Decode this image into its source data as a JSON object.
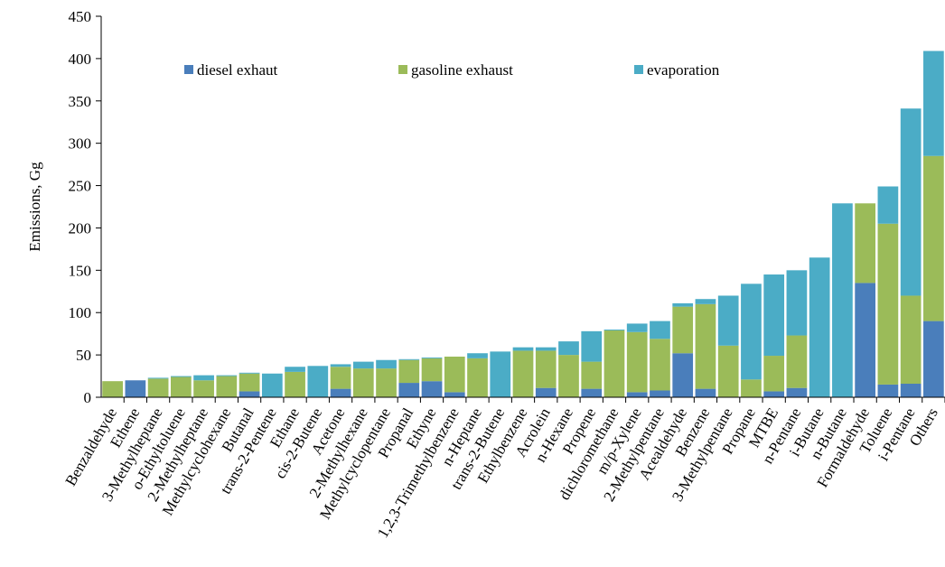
{
  "chart_data": {
    "type": "bar",
    "stacked": true,
    "ylabel": "Emissions,  Gg",
    "xlabel": "",
    "title": "",
    "ylim": [
      0,
      450
    ],
    "yticks": [
      0,
      50,
      100,
      150,
      200,
      250,
      300,
      350,
      400,
      450
    ],
    "legend_position": "top-left",
    "categories": [
      "Benzaldehyde",
      "Ethene",
      "3-Methylheptane",
      "o-Ethyltoluene",
      "2-Methylheptane",
      "Methylcyclohexane",
      "Butanal",
      "trans-2-Pentene",
      "Ethane",
      "cis-2-Butene",
      "Acetone",
      "2-Methylhexane",
      "Methylcyclopentane",
      "Propanal",
      "Ethyne",
      "1,2,3-Trimethylbenzene",
      "n-Heptane",
      "trans-2-Butene",
      "Ethylbenzene",
      "Acrolein",
      "n-Hexane",
      "Propene",
      "dichloromethane",
      "m/p-Xylene",
      "2-Methylpentane",
      "Acealdehyde",
      "Benzene",
      "3-Methylpentane",
      "Propane",
      "MTBE",
      "n-Pentane",
      "i-Butane",
      "n-Butane",
      "Formaldehyde",
      "Toluene",
      "i-Pentane",
      "Others"
    ],
    "series": [
      {
        "name": "diesel exhaut",
        "color": "#4a7ebb",
        "values": [
          0,
          20,
          0,
          0,
          0,
          0,
          7,
          0,
          0,
          0,
          10,
          0,
          0,
          17,
          19,
          6,
          0,
          0,
          0,
          11,
          0,
          10,
          0,
          6,
          8,
          52,
          10,
          0,
          0,
          7,
          11,
          0,
          0,
          135,
          15,
          16,
          90
        ]
      },
      {
        "name": "gasoline exhaust",
        "color": "#9bbb59",
        "values": [
          19,
          0,
          22,
          24,
          20,
          25,
          21,
          0,
          30,
          0,
          26,
          34,
          34,
          27,
          27,
          42,
          46,
          0,
          55,
          44,
          50,
          32,
          79,
          71,
          61,
          55,
          100,
          61,
          21,
          42,
          62,
          0,
          0,
          94,
          190,
          104,
          195
        ]
      },
      {
        "name": "evaporation",
        "color": "#4bacc6",
        "values": [
          0,
          0,
          1,
          1,
          6,
          1,
          1,
          28,
          6,
          37,
          3,
          8,
          10,
          1,
          1,
          0,
          6,
          54,
          4,
          4,
          16,
          36,
          1,
          10,
          21,
          4,
          6,
          59,
          113,
          96,
          77,
          165,
          229,
          0,
          44,
          221,
          124
        ]
      }
    ]
  }
}
